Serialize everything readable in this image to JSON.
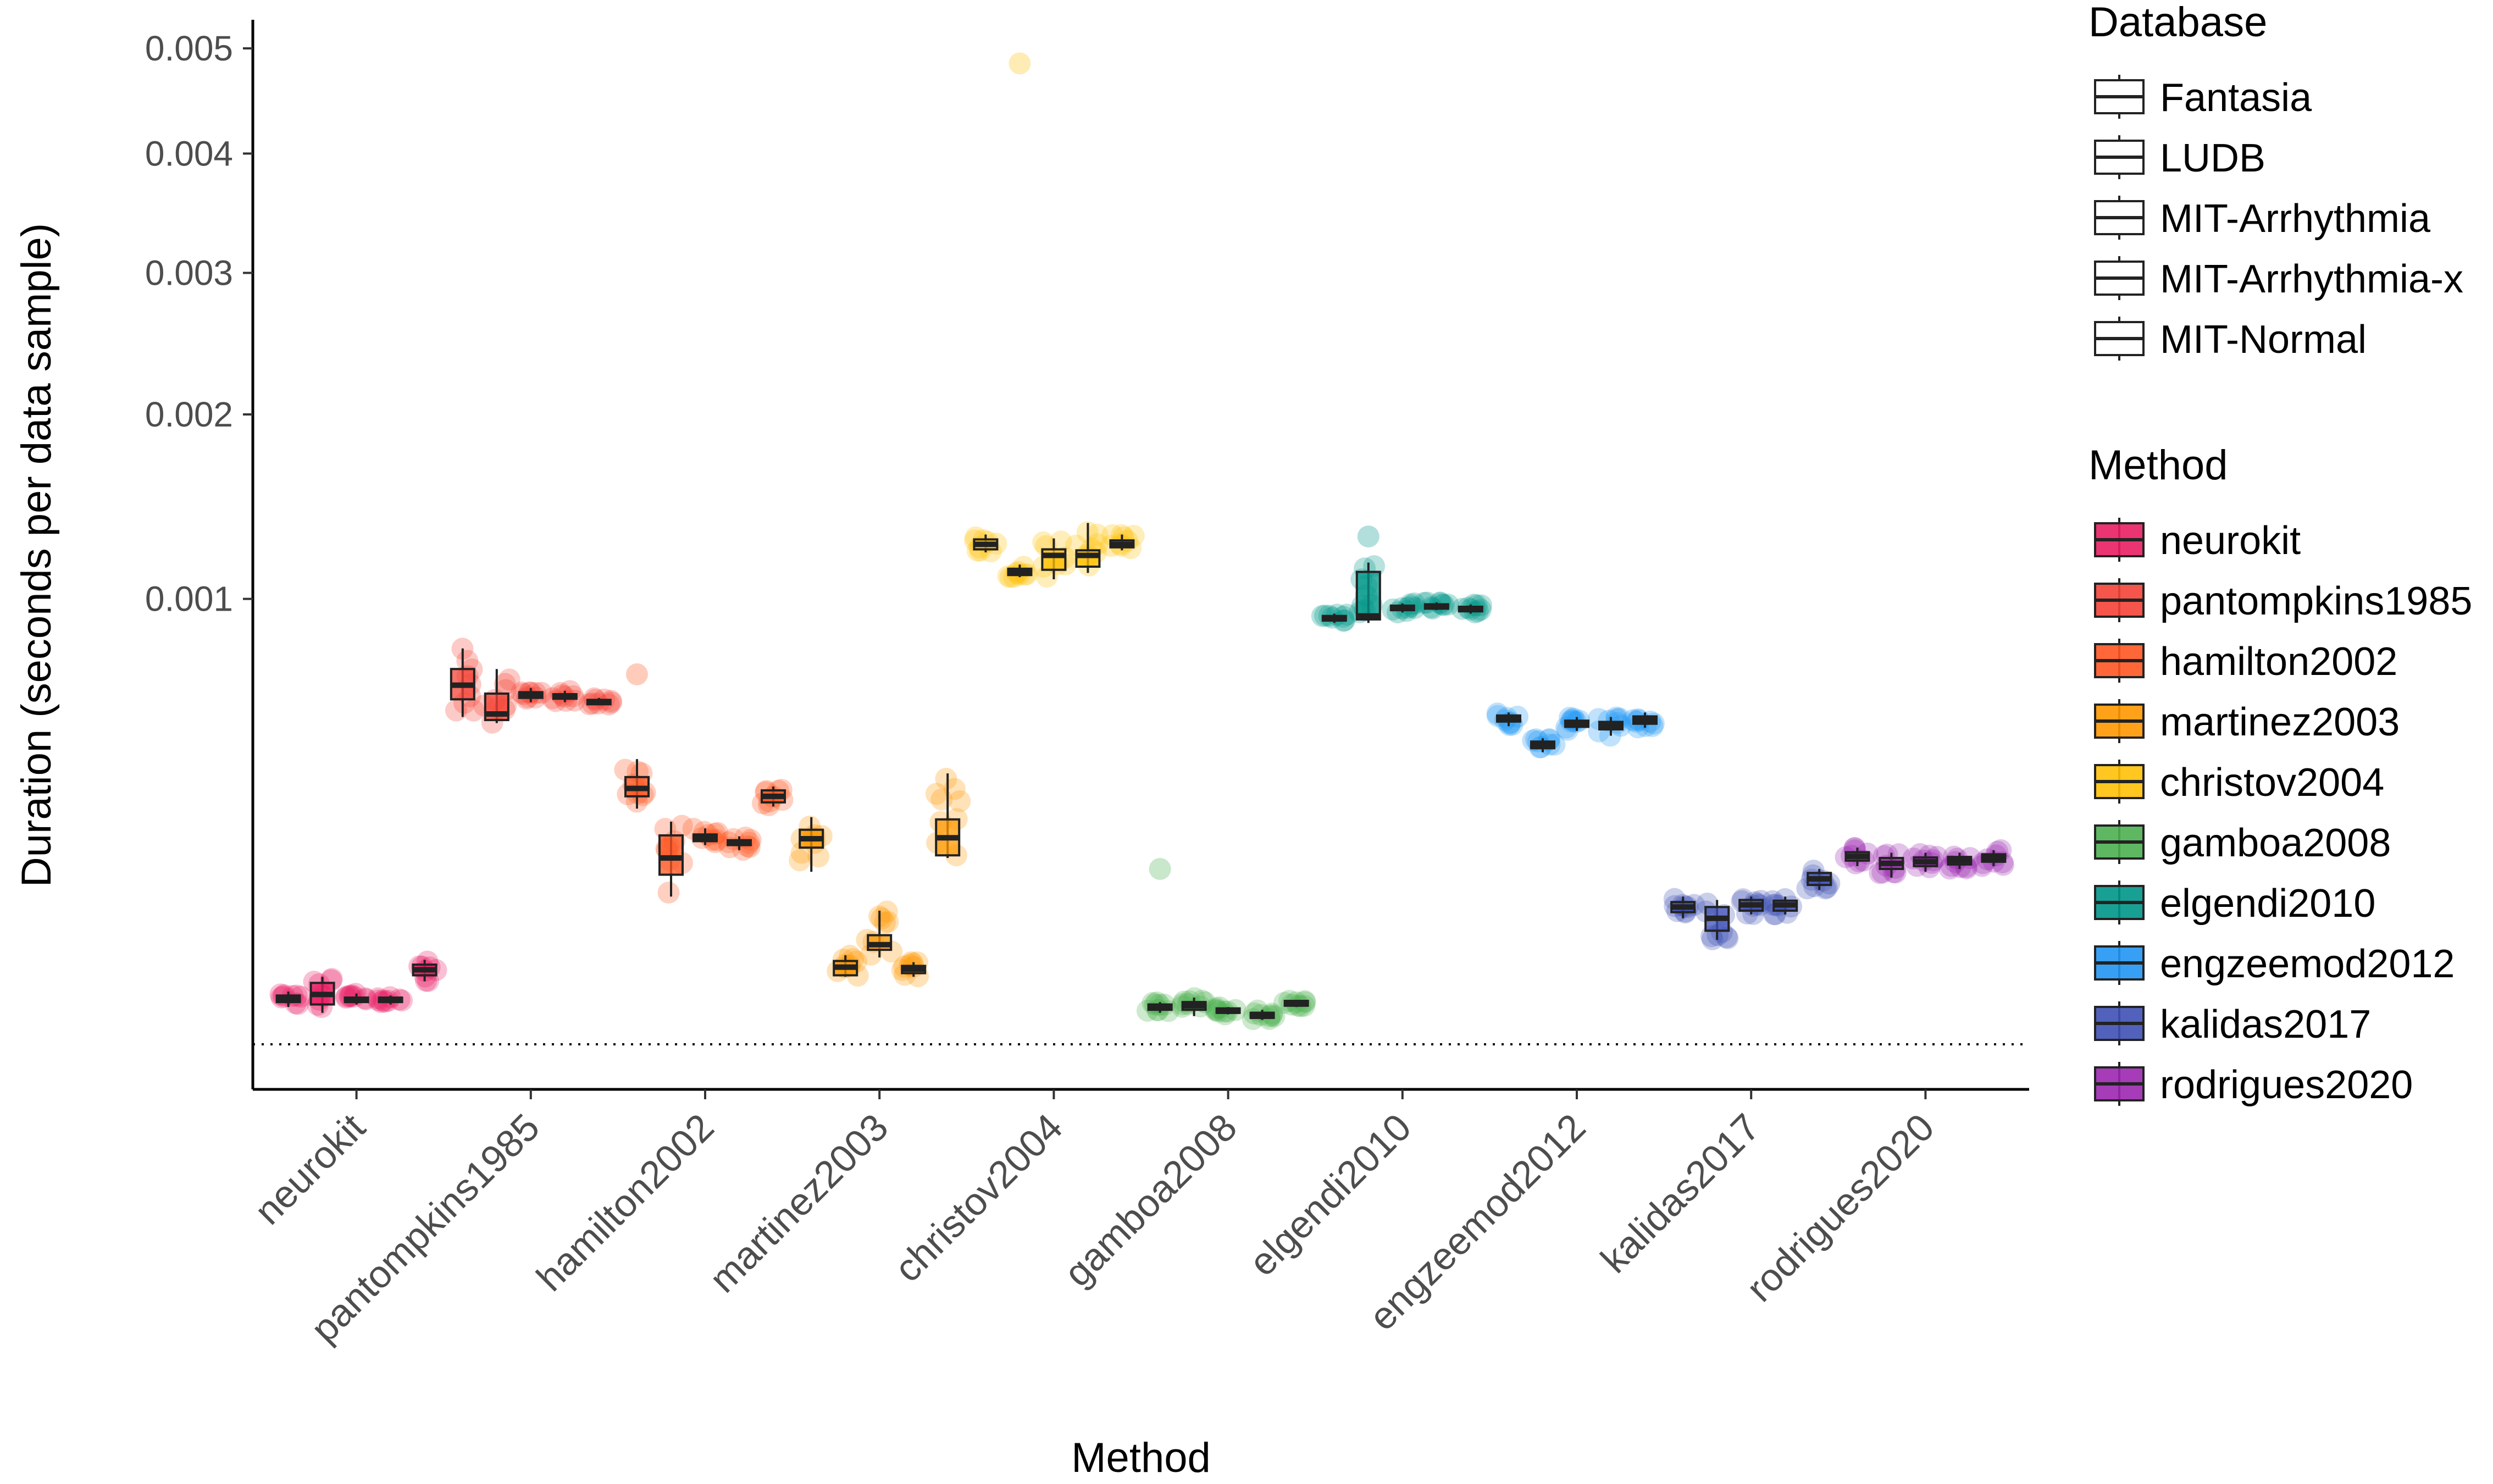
{
  "chart_data": {
    "type": "box",
    "xlabel": "Method",
    "ylabel": "Duration (seconds per data sample)",
    "y_scale": "sqrt",
    "ylim": [
      0,
      0.0051
    ],
    "yticks": [
      {
        "value": 0.001,
        "label": "0.001"
      },
      {
        "value": 0.002,
        "label": "0.002"
      },
      {
        "value": 0.003,
        "label": "0.003"
      },
      {
        "value": 0.004,
        "label": "0.004"
      },
      {
        "value": 0.005,
        "label": "0.005"
      }
    ],
    "reference_line": {
      "y": 0.0,
      "style": "dotted"
    },
    "databases": [
      "Fantasia",
      "LUDB",
      "MIT-Arrhythmia",
      "MIT-Arrhythmia-x",
      "MIT-Normal"
    ],
    "legend_titles": {
      "database": "Database",
      "method": "Method"
    },
    "methods": [
      {
        "name": "neurokit",
        "color": "#E91E63",
        "boxes": [
          {
            "q1": 9e-06,
            "median": 1.05e-05,
            "q3": 1.2e-05,
            "min": 7e-06,
            "max": 1.4e-05
          },
          {
            "q1": 8e-06,
            "median": 1.25e-05,
            "q3": 1.9e-05,
            "min": 5e-06,
            "max": 2.3e-05
          },
          {
            "q1": 9e-06,
            "median": 1e-05,
            "q3": 1.1e-05,
            "min": 8e-06,
            "max": 1.3e-05
          },
          {
            "q1": 9e-06,
            "median": 1e-05,
            "q3": 1.1e-05,
            "min": 8e-06,
            "max": 1.2e-05
          },
          {
            "q1": 2.4e-05,
            "median": 2.8e-05,
            "q3": 3.2e-05,
            "min": 2e-05,
            "max": 3.6e-05
          }
        ]
      },
      {
        "name": "pantompkins1985",
        "color": "#F44336",
        "boxes": [
          {
            "q1": 0.0006,
            "median": 0.00065,
            "q3": 0.00071,
            "min": 0.00054,
            "max": 0.00079
          },
          {
            "q1": 0.00053,
            "median": 0.00055,
            "q3": 0.00062,
            "min": 0.00052,
            "max": 0.00071
          },
          {
            "q1": 0.000605,
            "median": 0.000615,
            "q3": 0.000625,
            "min": 0.00059,
            "max": 0.00064
          },
          {
            "q1": 0.000602,
            "median": 0.00061,
            "q3": 0.000618,
            "min": 0.00059,
            "max": 0.00063
          },
          {
            "q1": 0.000585,
            "median": 0.000592,
            "q3": 0.000598,
            "min": 0.00058,
            "max": 0.000605
          }
        ]
      },
      {
        "name": "hamilton2002",
        "color": "#FF5722",
        "boxes": [
          {
            "q1": 0.00031,
            "median": 0.00033,
            "q3": 0.00036,
            "min": 0.00028,
            "max": 0.00041
          },
          {
            "q1": 0.000145,
            "median": 0.000175,
            "q3": 0.00022,
            "min": 0.00011,
            "max": 0.00025
          },
          {
            "q1": 0.000208,
            "median": 0.000215,
            "q3": 0.000222,
            "min": 0.0002,
            "max": 0.000235
          },
          {
            "q1": 0.0002,
            "median": 0.000205,
            "q3": 0.00021,
            "min": 0.00019,
            "max": 0.000218
          },
          {
            "q1": 0.000295,
            "median": 0.00031,
            "q3": 0.000325,
            "min": 0.000285,
            "max": 0.000335
          }
        ]
      },
      {
        "name": "martinez2003",
        "color": "#FF9800",
        "boxes": [
          {
            "q1": 0.000195,
            "median": 0.000213,
            "q3": 0.000232,
            "min": 0.00015,
            "max": 0.00026
          },
          {
            "q1": 2.4e-05,
            "median": 3e-05,
            "q3": 3.5e-05,
            "min": 2.3e-05,
            "max": 4e-05
          },
          {
            "q1": 4.5e-05,
            "median": 5e-05,
            "q3": 6e-05,
            "min": 3.8e-05,
            "max": 9e-05
          },
          {
            "q1": 2.55e-05,
            "median": 2.85e-05,
            "q3": 3.1e-05,
            "min": 2.3e-05,
            "max": 3.4e-05
          },
          {
            "q1": 0.00018,
            "median": 0.000215,
            "q3": 0.000255,
            "min": 0.000175,
            "max": 0.00037
          }
        ]
      },
      {
        "name": "christov2004",
        "color": "#FFC107",
        "boxes": [
          {
            "q1": 0.001235,
            "median": 0.00126,
            "q3": 0.001285,
            "min": 0.00122,
            "max": 0.00131
          },
          {
            "q1": 0.00111,
            "median": 0.001125,
            "q3": 0.00114,
            "min": 0.0011,
            "max": 0.00116
          },
          {
            "q1": 0.001135,
            "median": 0.001205,
            "q3": 0.001235,
            "min": 0.00109,
            "max": 0.00129
          },
          {
            "q1": 0.00115,
            "median": 0.001205,
            "q3": 0.00123,
            "min": 0.00112,
            "max": 0.00137
          },
          {
            "q1": 0.001245,
            "median": 0.00126,
            "q3": 0.00128,
            "min": 0.00123,
            "max": 0.00131
          }
        ]
      },
      {
        "name": "gamboa2008",
        "color": "#4CAF50",
        "boxes": [
          {
            "q1": 6e-06,
            "median": 7e-06,
            "q3": 8e-06,
            "min": 5e-06,
            "max": 9e-06
          },
          {
            "q1": 6e-06,
            "median": 7.5e-06,
            "q3": 9e-06,
            "min": 4e-06,
            "max": 1.1e-05
          },
          {
            "q1": 5e-06,
            "median": 5.5e-06,
            "q3": 6.5e-06,
            "min": 4.5e-06,
            "max": 7e-06
          },
          {
            "q1": 3.5e-06,
            "median": 4.5e-06,
            "q3": 5e-06,
            "min": 3e-06,
            "max": 6e-06
          },
          {
            "q1": 7.5e-06,
            "median": 8.5e-06,
            "q3": 9.5e-06,
            "min": 7e-06,
            "max": 1e-05
          }
        ]
      },
      {
        "name": "elgendi2010",
        "color": "#009688",
        "boxes": [
          {
            "q1": 0.000905,
            "median": 0.000915,
            "q3": 0.000925,
            "min": 0.000895,
            "max": 0.000935
          },
          {
            "q1": 0.00091,
            "median": 0.000925,
            "q3": 0.001125,
            "min": 0.000895,
            "max": 0.00117
          },
          {
            "q1": 0.00095,
            "median": 0.00096,
            "q3": 0.00097,
            "min": 0.00094,
            "max": 0.00098
          },
          {
            "q1": 0.00096,
            "median": 0.000968,
            "q3": 0.000976,
            "min": 0.00095,
            "max": 0.000985
          },
          {
            "q1": 0.000945,
            "median": 0.000955,
            "q3": 0.000965,
            "min": 0.000935,
            "max": 0.000975
          }
        ]
      },
      {
        "name": "engzeemod2012",
        "color": "#2196F3",
        "boxes": [
          {
            "q1": 0.000525,
            "median": 0.000535,
            "q3": 0.000545,
            "min": 0.00051,
            "max": 0.000555
          },
          {
            "q1": 0.000442,
            "median": 0.000452,
            "q3": 0.000462,
            "min": 0.00043,
            "max": 0.000472
          },
          {
            "q1": 0.000508,
            "median": 0.000518,
            "q3": 0.000528,
            "min": 0.000495,
            "max": 0.00054
          },
          {
            "q1": 0.0005,
            "median": 0.000512,
            "q3": 0.000524,
            "min": 0.00048,
            "max": 0.00054
          },
          {
            "q1": 0.000518,
            "median": 0.00053,
            "q3": 0.000542,
            "min": 0.000505,
            "max": 0.000555
          }
        ]
      },
      {
        "name": "kalidas2017",
        "color": "#3F51B5",
        "boxes": [
          {
            "q1": 8.8e-05,
            "median": 9.5e-05,
            "q3": 0.000102,
            "min": 8e-05,
            "max": 0.00011
          },
          {
            "q1": 6.5e-05,
            "median": 8e-05,
            "q3": 9.5e-05,
            "min": 5.5e-05,
            "max": 0.000105
          },
          {
            "q1": 9e-05,
            "median": 9.8e-05,
            "q3": 0.000105,
            "min": 8.5e-05,
            "max": 0.00011
          },
          {
            "q1": 9e-05,
            "median": 9.8e-05,
            "q3": 0.000104,
            "min": 8.5e-05,
            "max": 0.00011
          },
          {
            "q1": 0.000128,
            "median": 0.000138,
            "q3": 0.000148,
            "min": 0.00012,
            "max": 0.000155
          }
        ]
      },
      {
        "name": "rodrigues2020",
        "color": "#9C27B0",
        "boxes": [
          {
            "q1": 0.00017,
            "median": 0.000178,
            "q3": 0.000186,
            "min": 0.00016,
            "max": 0.000195
          },
          {
            "q1": 0.000155,
            "median": 0.000165,
            "q3": 0.000175,
            "min": 0.00014,
            "max": 0.000185
          },
          {
            "q1": 0.00016,
            "median": 0.000168,
            "q3": 0.000176,
            "min": 0.00015,
            "max": 0.000185
          },
          {
            "q1": 0.000163,
            "median": 0.00017,
            "q3": 0.000177,
            "min": 0.000155,
            "max": 0.000185
          },
          {
            "q1": 0.000168,
            "median": 0.000175,
            "q3": 0.000182,
            "min": 0.00016,
            "max": 0.00019
          }
        ]
      }
    ],
    "outliers": [
      {
        "method": "christov2004",
        "database": "LUDB",
        "y": 0.00485
      },
      {
        "method": "hamilton2002",
        "database": "Fantasia",
        "y": 0.00069
      },
      {
        "method": "gamboa2008",
        "database": "Fantasia",
        "y": 0.000155
      },
      {
        "method": "elgendi2010",
        "database": "LUDB",
        "y": 0.0013
      }
    ]
  }
}
